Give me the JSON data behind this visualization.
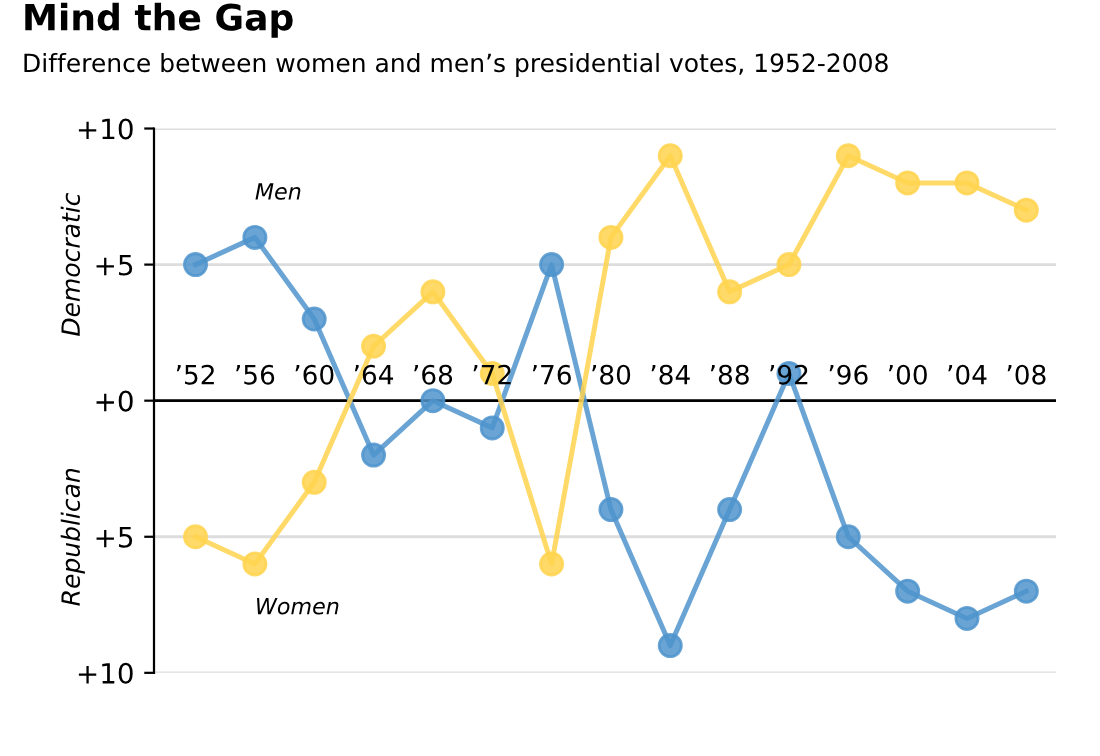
{
  "chart_data": {
    "type": "line",
    "title": "Mind the Gap",
    "subtitle": "Difference between women and men’s presidential votes, 1952-2008",
    "categories": [
      "’52",
      "’56",
      "’60",
      "’64",
      "’68",
      "’72",
      "’76",
      "’80",
      "’84",
      "’88",
      "’92",
      "’96",
      "’00",
      "’04",
      "’08"
    ],
    "series": [
      {
        "name": "Men",
        "color": "#4f94cd",
        "values": [
          5,
          6,
          3,
          -2,
          0,
          -1,
          5,
          -4,
          -9,
          -4,
          1,
          -5,
          -7,
          -8,
          -7
        ]
      },
      {
        "name": "Women",
        "color": "#ffd44f",
        "values": [
          -5,
          -6,
          -3,
          2,
          4,
          1,
          -6,
          6,
          9,
          4,
          5,
          9,
          8,
          8,
          7
        ]
      }
    ],
    "ylim": [
      -10,
      10
    ],
    "yticks": [
      {
        "value": -10,
        "label": "+10"
      },
      {
        "value": -5,
        "label": "+5"
      },
      {
        "value": 0,
        "label": "+0"
      },
      {
        "value": 5,
        "label": "+5"
      },
      {
        "value": 10,
        "label": "+10"
      }
    ],
    "annotations": [
      "Democratic",
      "Republican"
    ],
    "grid": "y",
    "marker": "circle",
    "line_style": "solid",
    "legend": false
  }
}
